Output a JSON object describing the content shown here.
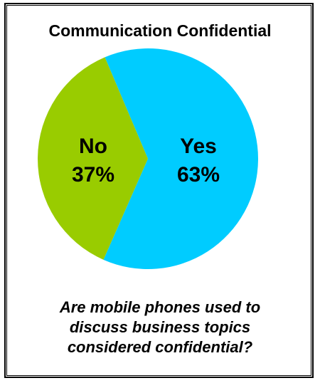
{
  "chart_data": {
    "type": "pie",
    "title": "Communication Confidential",
    "categories": [
      "Yes",
      "No"
    ],
    "values": [
      63,
      37
    ],
    "value_labels": [
      "63%",
      "37%"
    ],
    "colors": [
      "#00ccff",
      "#99cc00"
    ],
    "legend": "none"
  },
  "caption": {
    "line1": "Are mobile phones used to",
    "line2": "discuss business topics",
    "line3": "considered confidential?"
  }
}
